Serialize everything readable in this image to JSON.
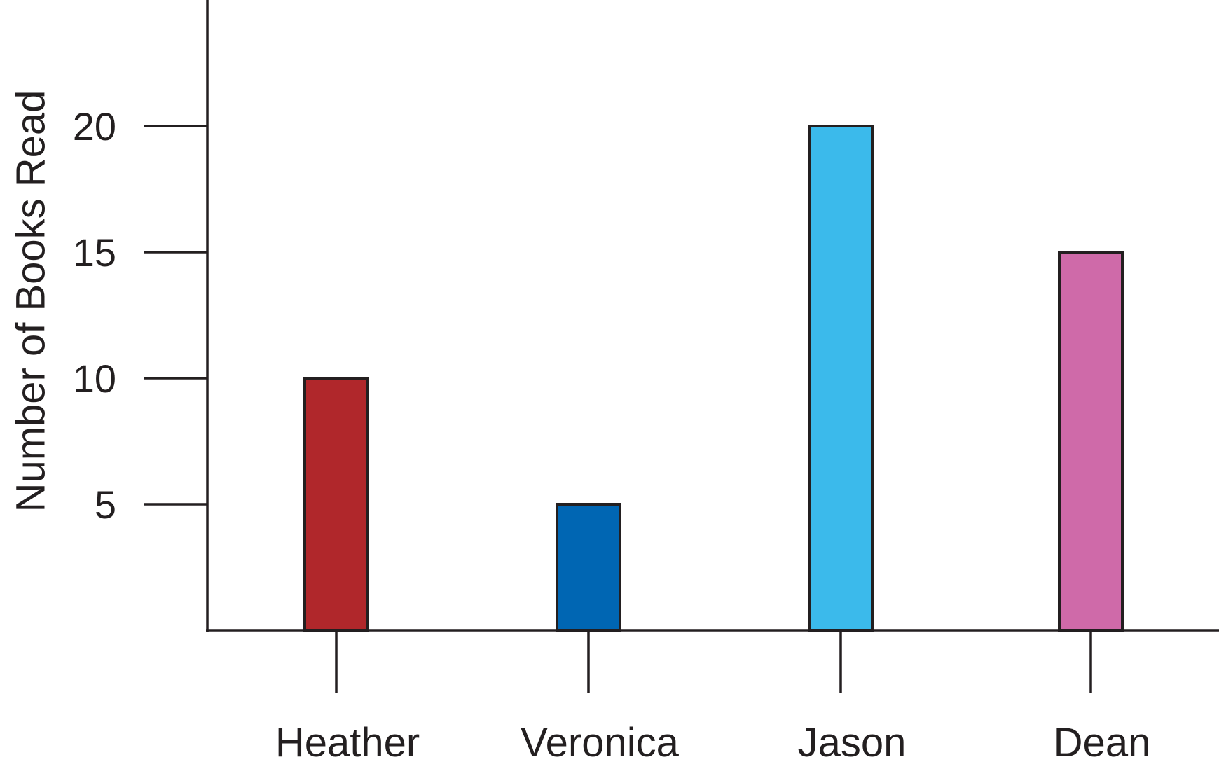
{
  "chart_data": {
    "type": "bar",
    "title": "",
    "xlabel": "",
    "ylabel": "Number of Books Read",
    "categories": [
      "Heather",
      "Veronica",
      "Jason",
      "Dean"
    ],
    "values": [
      10,
      5,
      20,
      15
    ],
    "colors": [
      "#b0272b",
      "#0066b3",
      "#3bbaeb",
      "#cf6aa9"
    ],
    "yticks": [
      5,
      10,
      15,
      20
    ],
    "ytick_labels": [
      "5",
      "10",
      "15",
      "20"
    ],
    "ylim": [
      0,
      25
    ],
    "grid": false,
    "legend": "none"
  }
}
